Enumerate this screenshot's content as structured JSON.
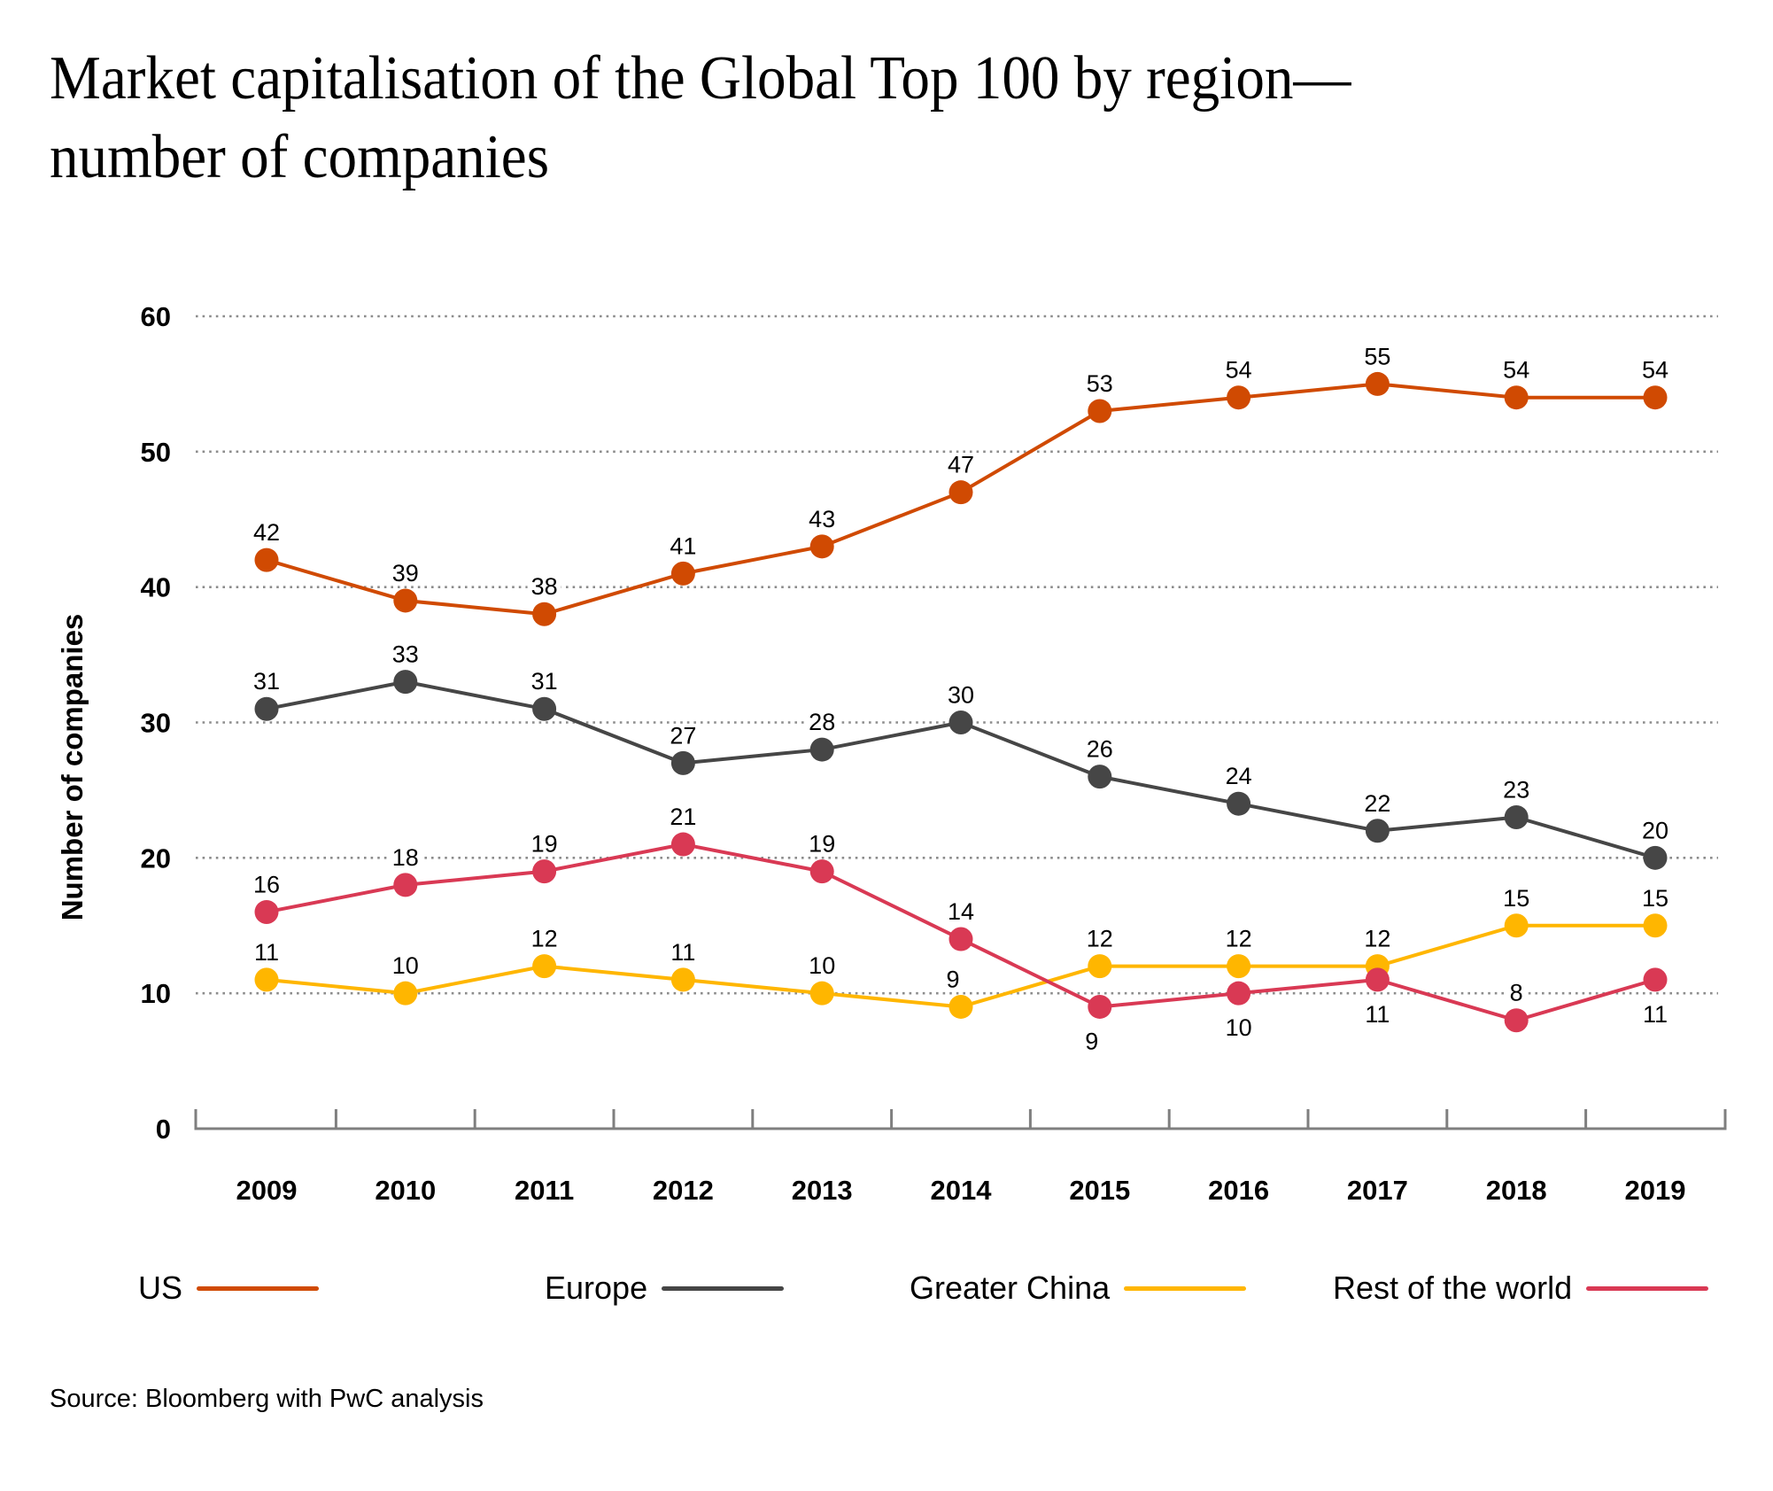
{
  "title": {
    "line1": "Market capitalisation of the Global Top 100 by region—",
    "line2": "number of companies"
  },
  "source": "Source: Bloomberg with PwC analysis",
  "chart_data": {
    "type": "line",
    "title": "Market capitalisation of the Global Top 100 by region—number of companies",
    "xlabel": "",
    "ylabel": "Number of companies",
    "x": [
      "2009",
      "2010",
      "2011",
      "2012",
      "2013",
      "2014",
      "2015",
      "2016",
      "2017",
      "2018",
      "2019"
    ],
    "ylim": [
      0,
      60
    ],
    "yticks": [
      "0",
      "10",
      "20",
      "30",
      "40",
      "50",
      "60"
    ],
    "ytick_values": [
      0,
      10,
      20,
      30,
      40,
      50,
      60
    ],
    "grid": "horizontal dotted",
    "legend_position": "bottom",
    "series": [
      {
        "name": "US",
        "color": "#D04A02",
        "values": [
          42,
          39,
          38,
          41,
          43,
          47,
          53,
          54,
          55,
          54,
          54
        ],
        "label_side": [
          "above",
          "above",
          "above",
          "above",
          "above",
          "above",
          "above",
          "above",
          "above",
          "above",
          "above"
        ]
      },
      {
        "name": "Europe",
        "color": "#464646",
        "values": [
          31,
          33,
          31,
          27,
          28,
          30,
          26,
          24,
          22,
          23,
          20
        ],
        "label_side": [
          "above",
          "above",
          "above",
          "above",
          "above",
          "above",
          "above",
          "above",
          "above",
          "above",
          "above"
        ]
      },
      {
        "name": "Greater China",
        "color": "#FFB600",
        "values": [
          11,
          10,
          12,
          11,
          10,
          9,
          12,
          12,
          12,
          15,
          15
        ],
        "label_side": [
          "above",
          "above",
          "above",
          "above",
          "above",
          "above-left",
          "above",
          "above",
          "above",
          "above",
          "above"
        ]
      },
      {
        "name": "Rest of the world",
        "color": "#D93954",
        "values": [
          16,
          18,
          19,
          21,
          19,
          14,
          9,
          10,
          11,
          8,
          11
        ],
        "label_side": [
          "above",
          "above",
          "above",
          "above",
          "above",
          "above",
          "below-left",
          "below",
          "below",
          "above",
          "below"
        ]
      }
    ]
  },
  "colors": {
    "grid": "#8c8c8c",
    "axis": "#7f7f7f",
    "text": "#000000",
    "background": "#FFFFFF"
  }
}
